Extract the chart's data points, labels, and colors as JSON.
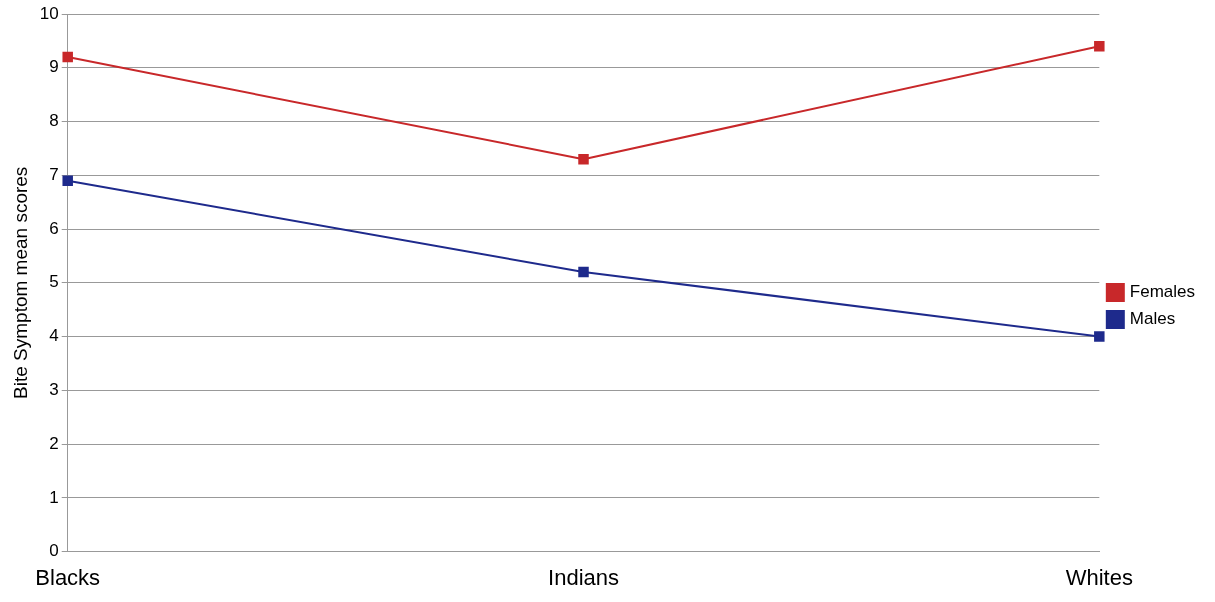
{
  "chart_data": {
    "type": "line",
    "ylabel": "Bite Symptom mean scores",
    "categories": [
      "Blacks",
      "Indians",
      "Whites"
    ],
    "series": [
      {
        "name": "Females",
        "color": "#c8282a",
        "values": [
          9.2,
          7.3,
          9.4
        ]
      },
      {
        "name": "Males",
        "color": "#1e2a8c",
        "values": [
          6.9,
          5.2,
          4.0
        ]
      }
    ],
    "ylim": [
      0,
      10
    ],
    "yticks": [
      0,
      1,
      2,
      3,
      4,
      5,
      6,
      7,
      8,
      9,
      10
    ],
    "grid": "y",
    "legend": "right",
    "marker": "square",
    "line_style": "solid"
  }
}
